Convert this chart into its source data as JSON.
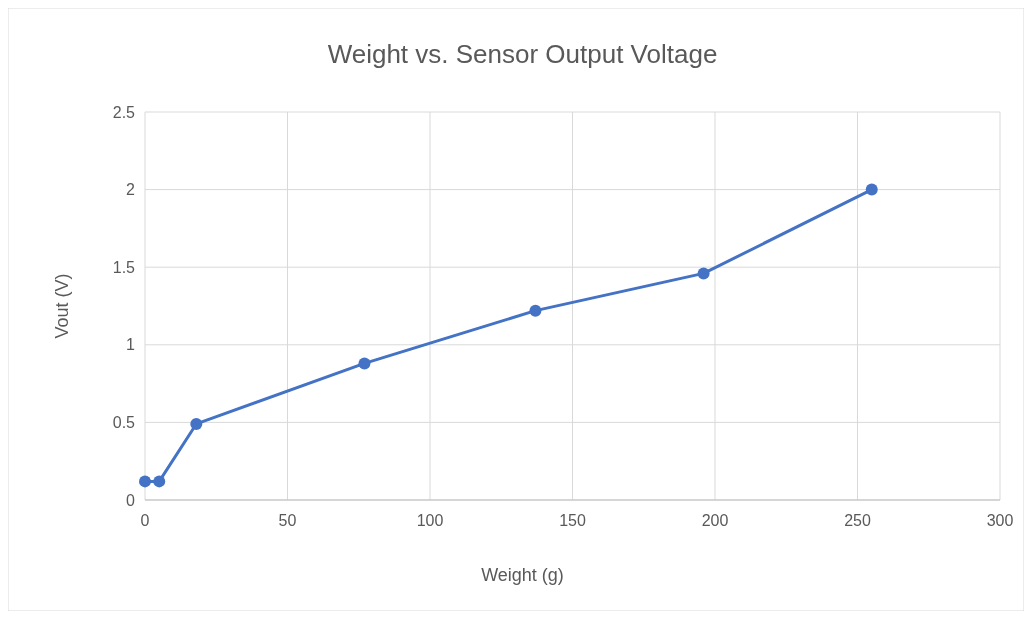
{
  "chart_data": {
    "type": "line",
    "title": "Weight vs. Sensor Output Voltage",
    "xlabel": "Weight (g)",
    "ylabel": "Vout (V)",
    "x": [
      0,
      5,
      18,
      77,
      137,
      196,
      255
    ],
    "series": [
      {
        "color": "#4472c4",
        "values": [
          0.12,
          0.12,
          0.49,
          0.88,
          1.22,
          1.46,
          2.0
        ]
      }
    ],
    "xlim": [
      0,
      300
    ],
    "xticks": [
      0,
      50,
      100,
      150,
      200,
      250,
      300
    ],
    "ylim": [
      0,
      2.5
    ],
    "yticks": [
      0,
      0.5,
      1,
      1.5,
      2,
      2.5
    ],
    "grid": true,
    "marker": "circle",
    "line_style": "solid"
  }
}
